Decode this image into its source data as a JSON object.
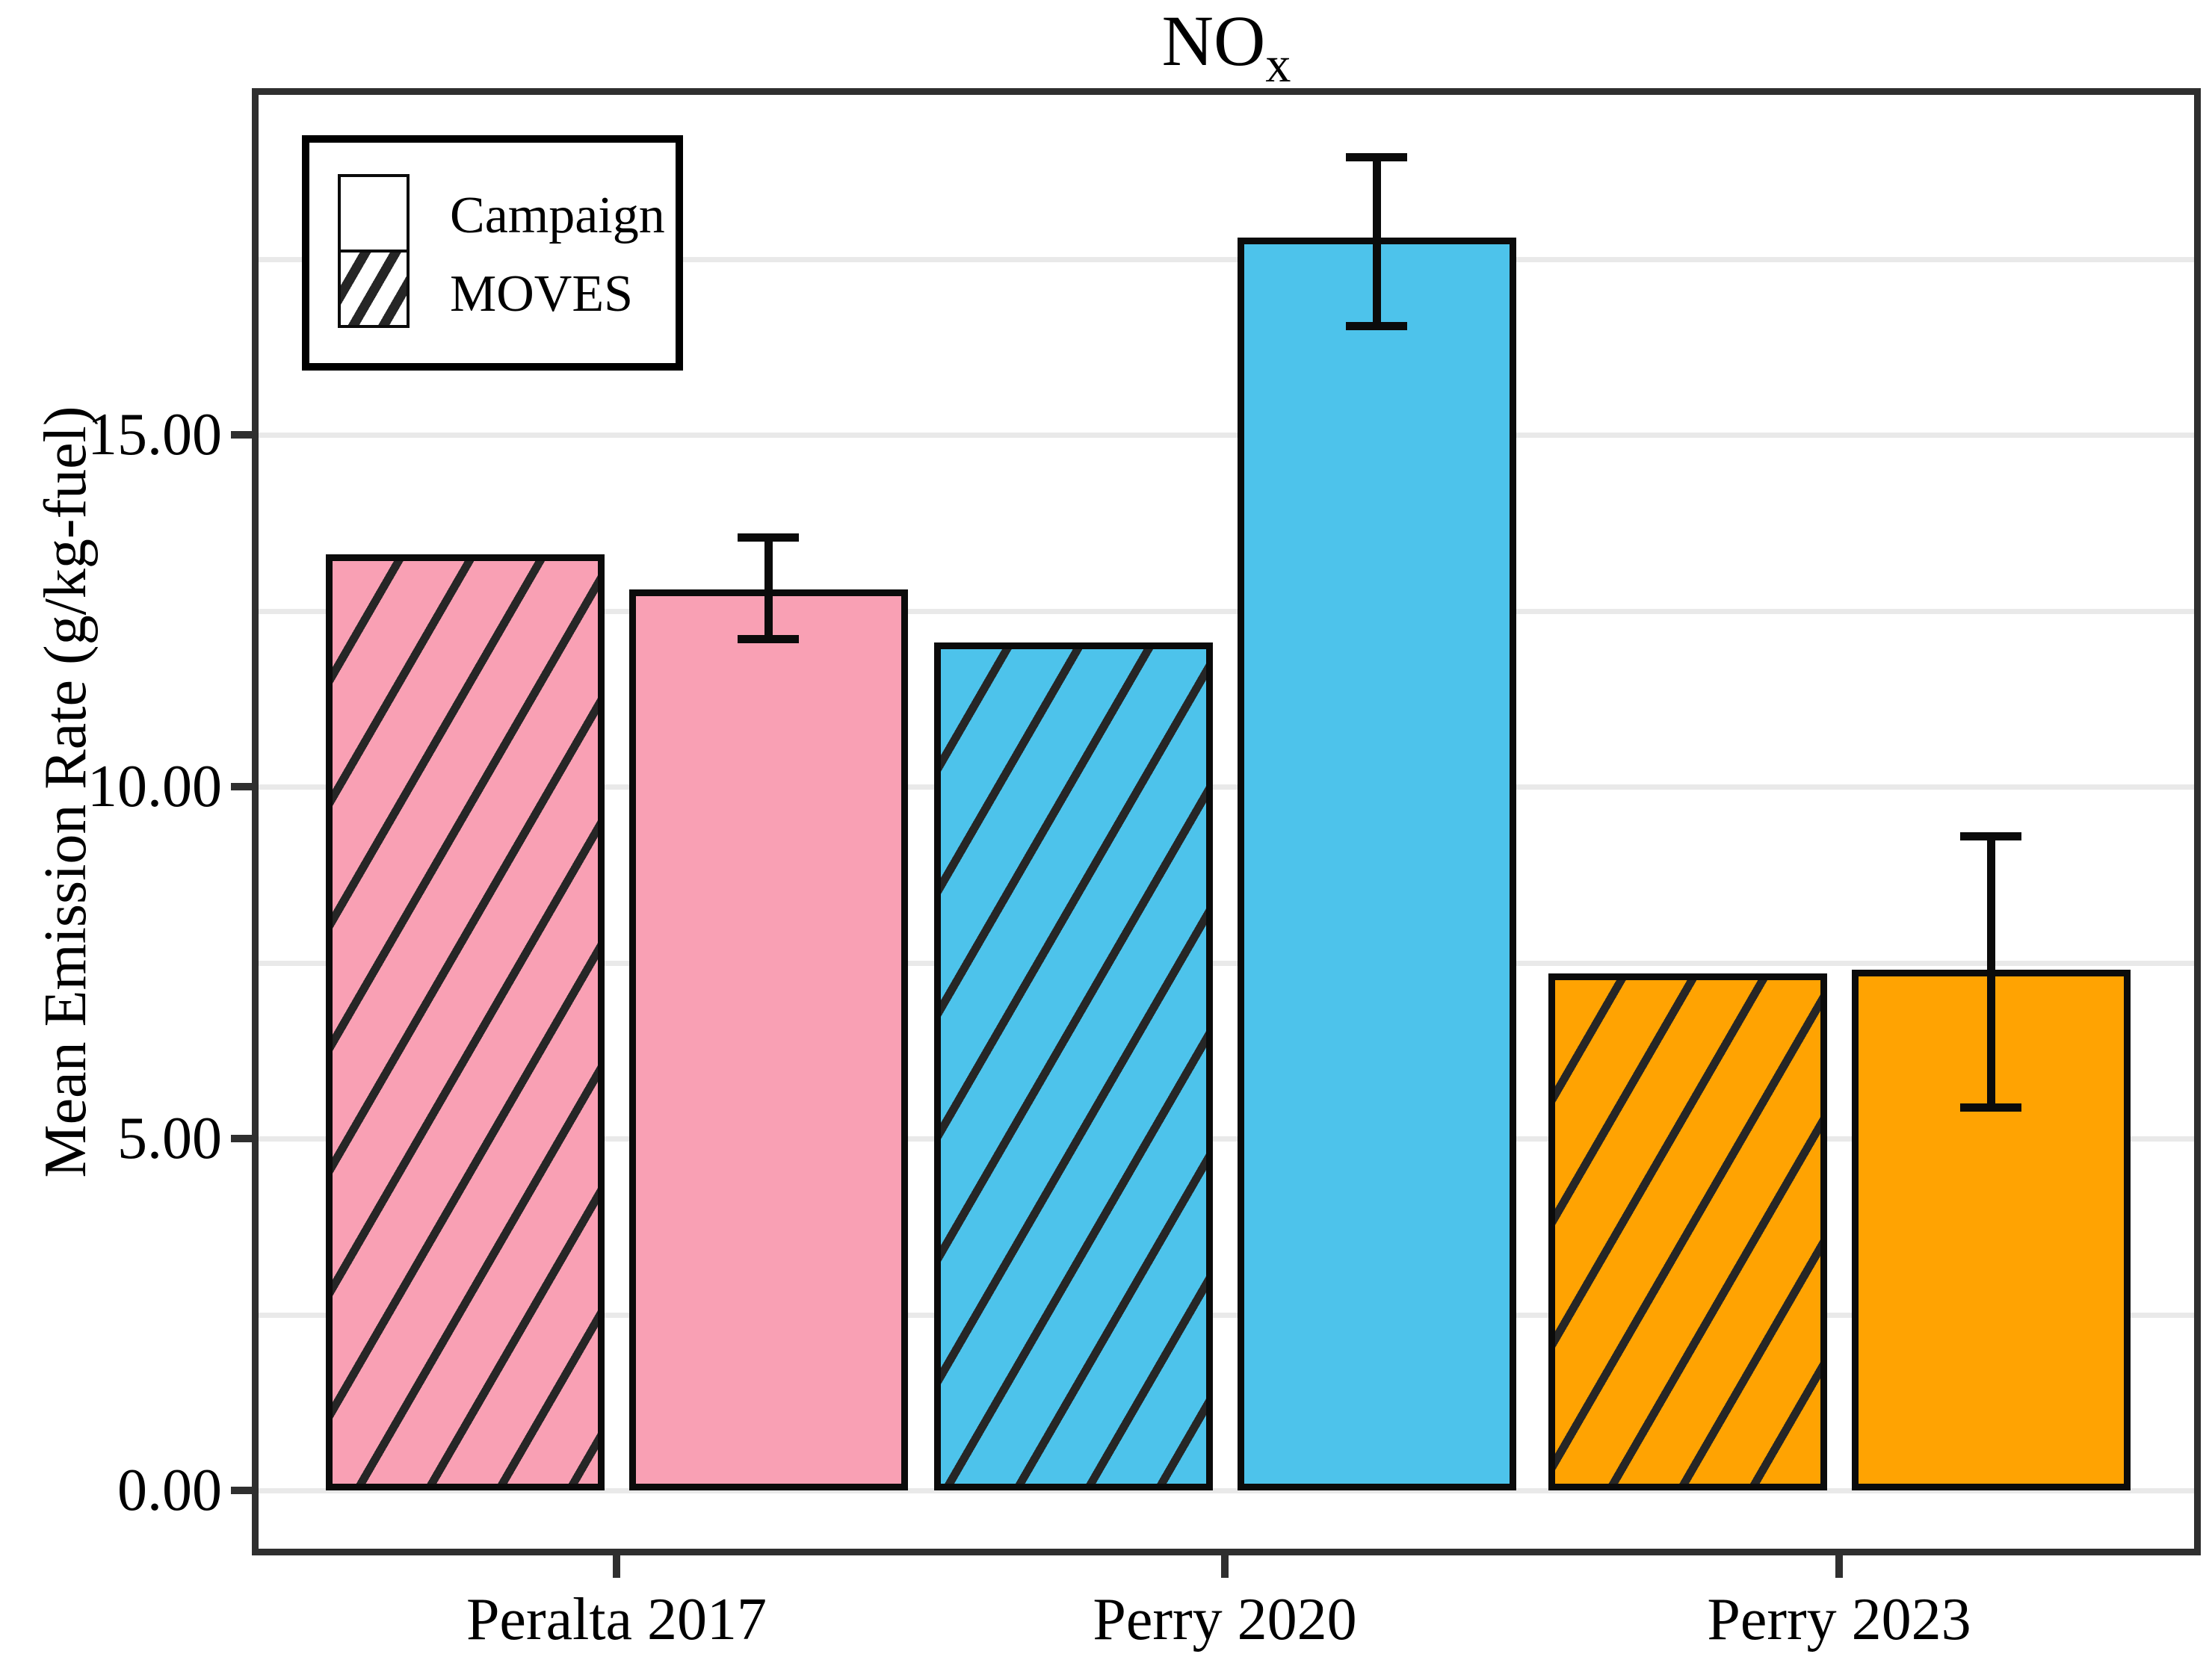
{
  "title": {
    "main": "NO",
    "subscript": "x"
  },
  "y_axis": {
    "label": "Mean Emission Rate (g/kg-fuel)",
    "ticks": [
      {
        "label": "0.00",
        "value": 0
      },
      {
        "label": "5.00",
        "value": 5
      },
      {
        "label": "10.00",
        "value": 10
      },
      {
        "label": "15.00",
        "value": 15
      }
    ]
  },
  "x_axis": {
    "groups": [
      "Peralta 2017",
      "Perry 2020",
      "Perry 2023"
    ]
  },
  "legend": {
    "items": [
      {
        "label": "Campaign",
        "pattern": "solid"
      },
      {
        "label": "MOVES",
        "pattern": "hatched"
      }
    ]
  },
  "colors": {
    "group_fills": [
      "#F9A0B4",
      "#4DC3EB",
      "#FFA302"
    ],
    "bar_border": "#0b0b0b",
    "hatch_line": "#262626",
    "gridline": "#e9e9e9",
    "panel_border": "#2f2f2f"
  },
  "chart_data": {
    "type": "bar",
    "title": "NOx",
    "xlabel": "",
    "ylabel": "Mean Emission Rate (g/kg-fuel)",
    "ylim": [
      0,
      19.9
    ],
    "grid_interval": 2.5,
    "legend_position": "top-left",
    "categories": [
      "Peralta 2017",
      "Perry 2020",
      "Perry 2023"
    ],
    "series": [
      {
        "name": "MOVES",
        "pattern": "hatched",
        "position_in_group": "left",
        "values": [
          13.3,
          12.05,
          7.35
        ],
        "error_low": [
          null,
          null,
          null
        ],
        "error_high": [
          null,
          null,
          null
        ]
      },
      {
        "name": "Campaign",
        "pattern": "solid",
        "position_in_group": "right",
        "values": [
          12.8,
          17.8,
          7.4
        ],
        "error_low": [
          12.1,
          16.55,
          5.45
        ],
        "error_high": [
          13.55,
          18.95,
          9.3
        ]
      }
    ]
  }
}
